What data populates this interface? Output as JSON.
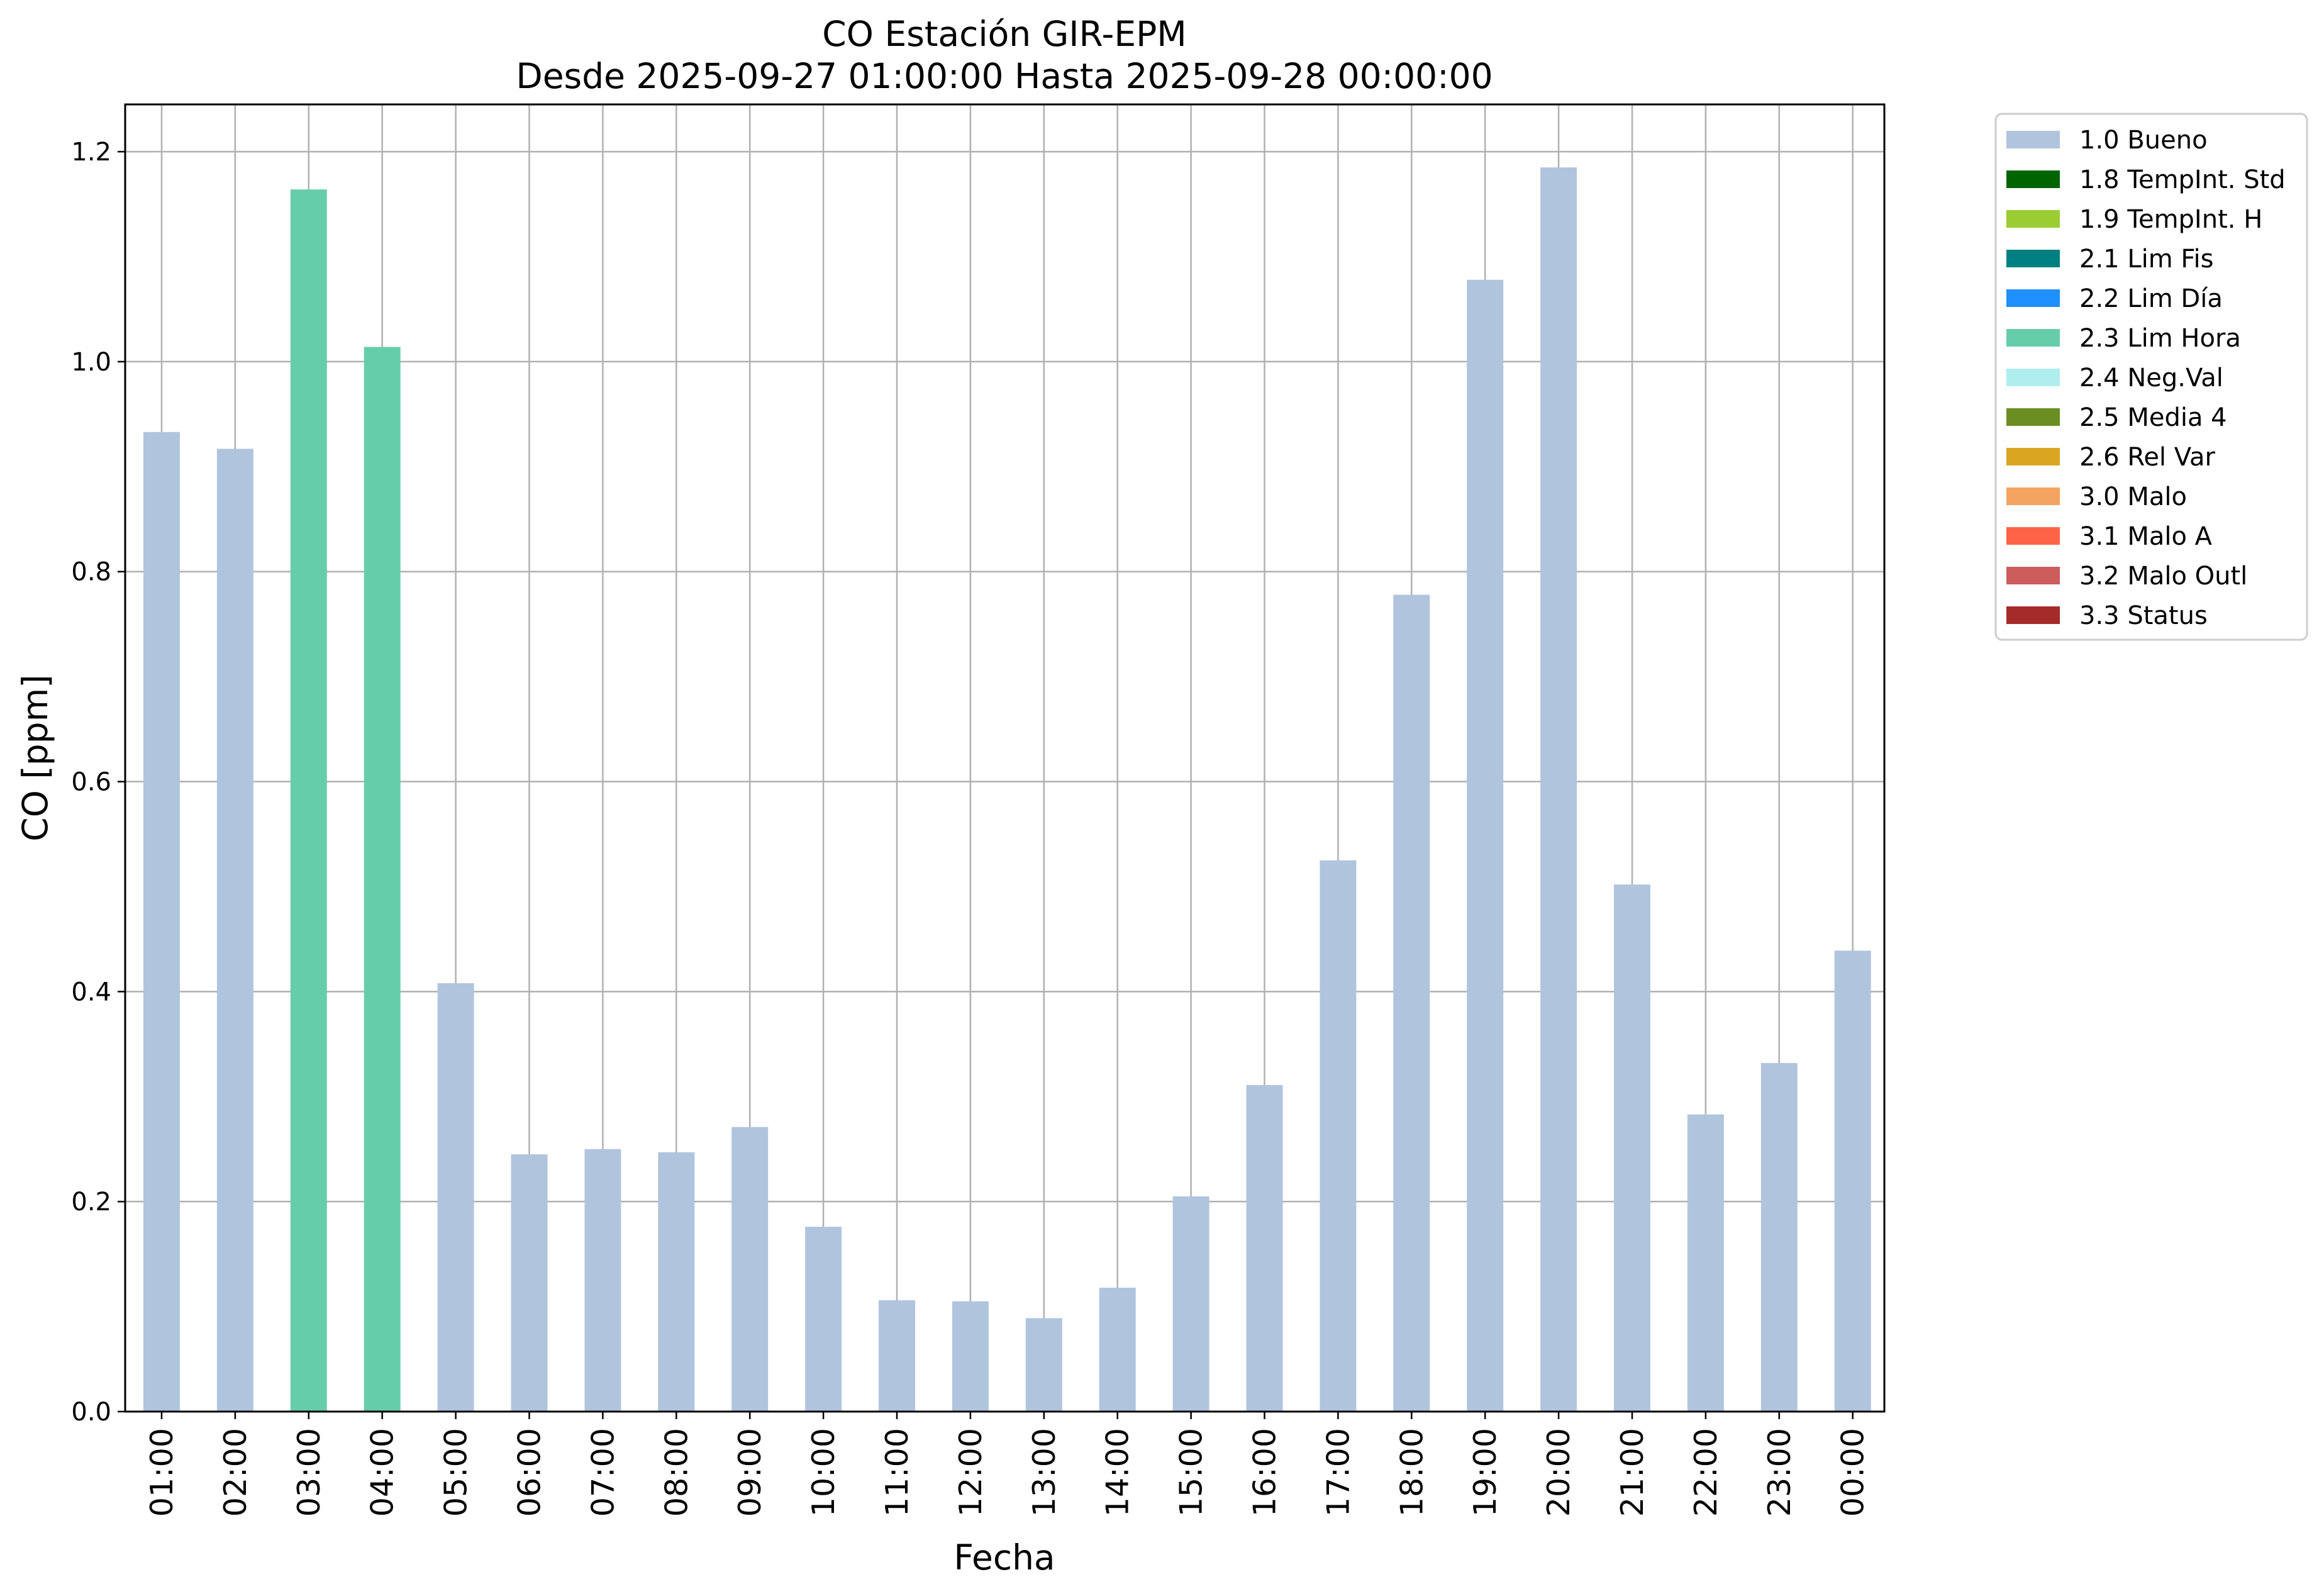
{
  "chart_data": {
    "type": "bar",
    "title": "CO Estación GIR-EPM",
    "subtitle": "Desde 2025-09-27 01:00:00 Hasta 2025-09-28 00:00:00",
    "xlabel": "Fecha",
    "ylabel": "CO [ppm]",
    "ylim": [
      0,
      1.245
    ],
    "yticks": [
      "0.0",
      "0.2",
      "0.4",
      "0.6",
      "0.8",
      "1.0",
      "1.2"
    ],
    "grid": true,
    "legend_position": "outside right, top",
    "categories": [
      "01:00",
      "02:00",
      "03:00",
      "04:00",
      "05:00",
      "06:00",
      "07:00",
      "08:00",
      "09:00",
      "10:00",
      "11:00",
      "12:00",
      "13:00",
      "14:00",
      "15:00",
      "16:00",
      "17:00",
      "18:00",
      "19:00",
      "20:00",
      "21:00",
      "22:00",
      "23:00",
      "00:00"
    ],
    "values": [
      0.933,
      0.917,
      1.164,
      1.014,
      0.408,
      0.245,
      0.25,
      0.247,
      0.271,
      0.176,
      0.106,
      0.105,
      0.089,
      0.118,
      0.205,
      0.311,
      0.525,
      0.778,
      1.078,
      1.185,
      0.502,
      0.283,
      0.332,
      0.439
    ],
    "flags": [
      "1.0 Bueno",
      "1.0 Bueno",
      "2.3 Lim Hora",
      "2.3 Lim Hora",
      "1.0 Bueno",
      "1.0 Bueno",
      "1.0 Bueno",
      "1.0 Bueno",
      "1.0 Bueno",
      "1.0 Bueno",
      "1.0 Bueno",
      "1.0 Bueno",
      "1.0 Bueno",
      "1.0 Bueno",
      "1.0 Bueno",
      "1.0 Bueno",
      "1.0 Bueno",
      "1.0 Bueno",
      "1.0 Bueno",
      "1.0 Bueno",
      "1.0 Bueno",
      "1.0 Bueno",
      "1.0 Bueno",
      "1.0 Bueno"
    ],
    "legend": [
      {
        "label": "1.0 Bueno",
        "color": "#b0c4de"
      },
      {
        "label": "1.8 TempInt. Std",
        "color": "#006400"
      },
      {
        "label": "1.9 TempInt. H",
        "color": "#9acd32"
      },
      {
        "label": "2.1 Lim Fis",
        "color": "#008080"
      },
      {
        "label": "2.2 Lim Día",
        "color": "#1e90ff"
      },
      {
        "label": "2.3 Lim Hora",
        "color": "#66cdaa"
      },
      {
        "label": "2.4 Neg.Val",
        "color": "#afeeee"
      },
      {
        "label": "2.5 Media 4",
        "color": "#6b8e23"
      },
      {
        "label": "2.6 Rel Var",
        "color": "#daa520"
      },
      {
        "label": "3.0 Malo",
        "color": "#f4a460"
      },
      {
        "label": "3.1 Malo A",
        "color": "#ff6347"
      },
      {
        "label": "3.2 Malo Outl",
        "color": "#cd5c5c"
      },
      {
        "label": "3.3 Status",
        "color": "#a52a2a"
      }
    ]
  }
}
